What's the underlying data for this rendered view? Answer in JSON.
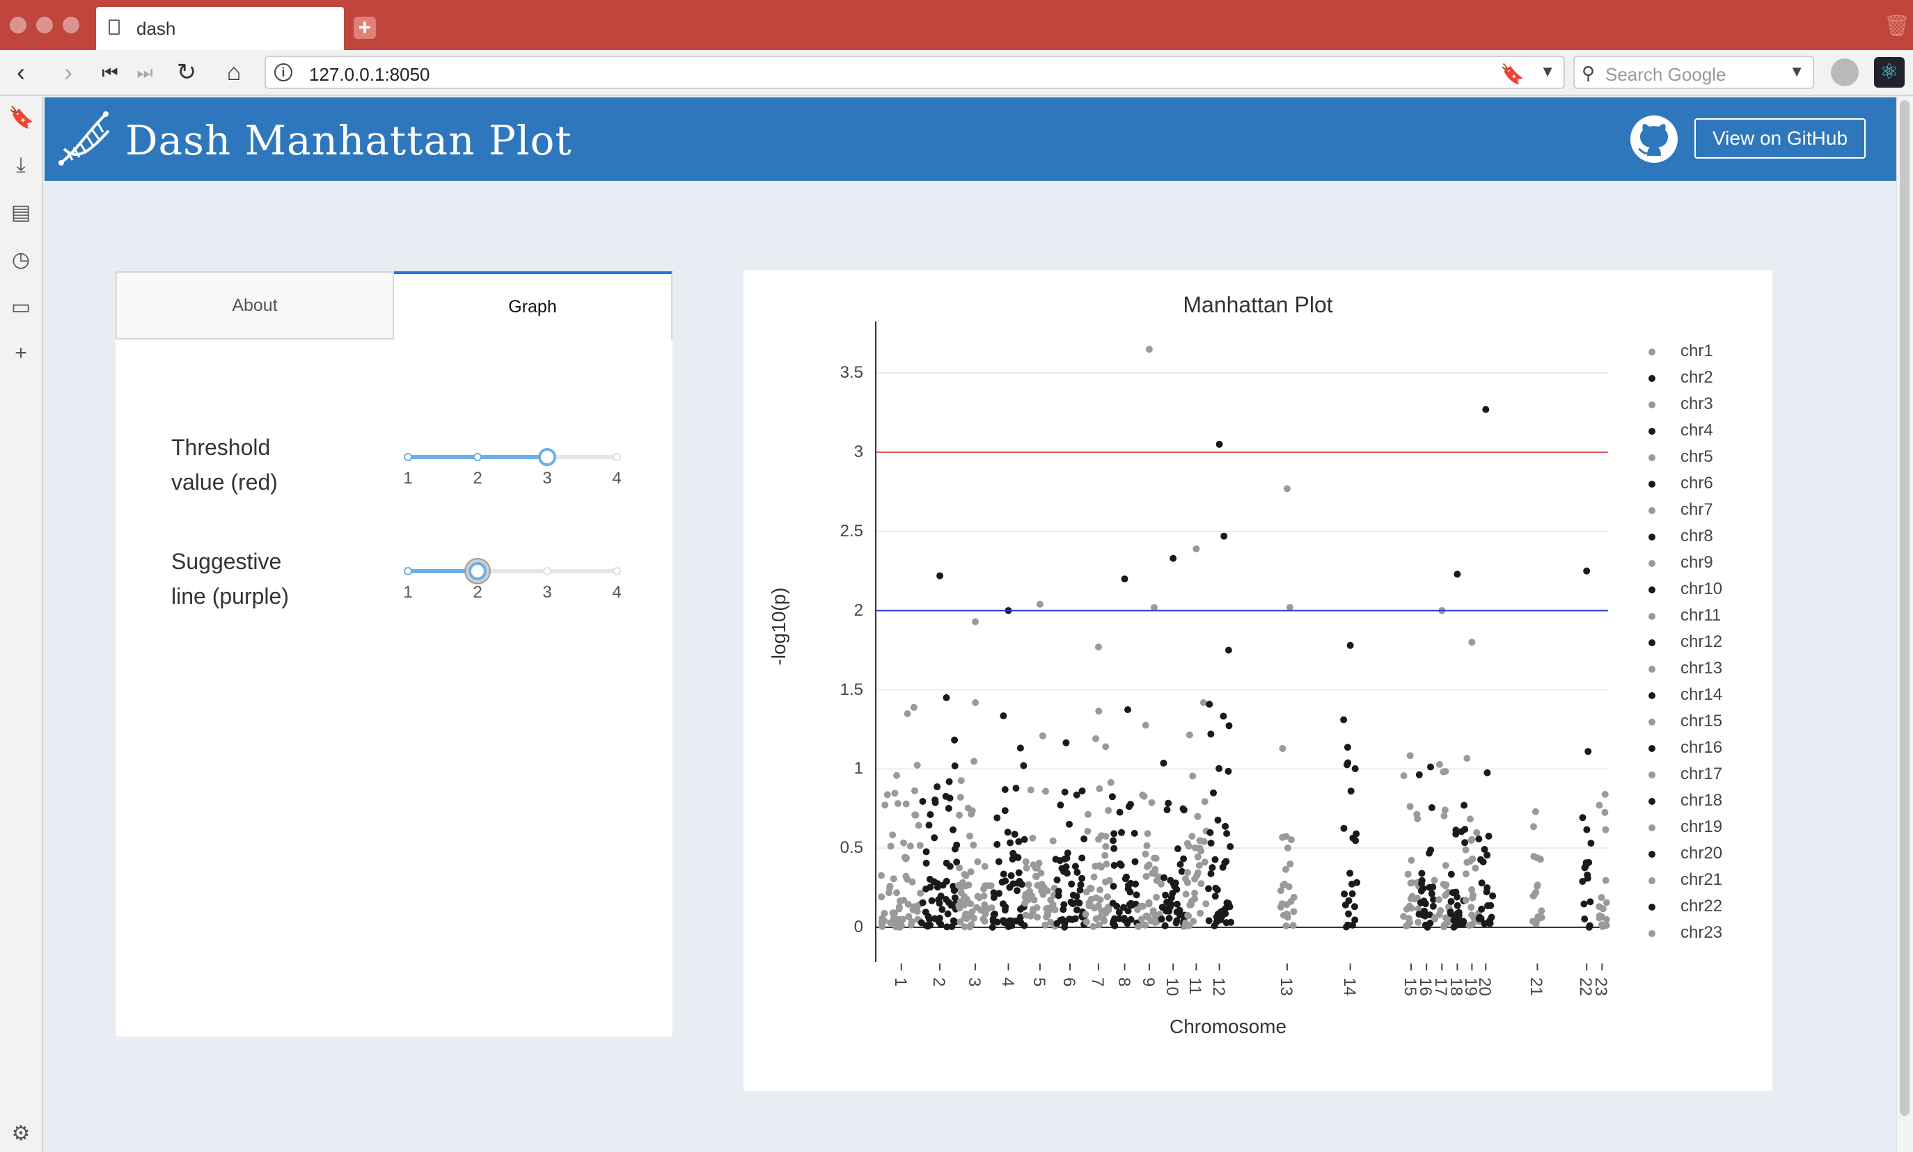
{
  "browser": {
    "tab_title": "dash",
    "url": "127.0.0.1:8050",
    "search_placeholder": "Search Google"
  },
  "app": {
    "title": "Dash Manhattan Plot",
    "github_button": "View on GitHub"
  },
  "tabs": {
    "about": "About",
    "graph": "Graph"
  },
  "controls": {
    "threshold": {
      "label_line1": "Threshold",
      "label_line2": "value (red)",
      "value": 3,
      "min": 1,
      "max": 4,
      "marks": [
        "1",
        "2",
        "3",
        "4"
      ]
    },
    "suggestive": {
      "label_line1": "Suggestive",
      "label_line2": "line (purple)",
      "value": 2,
      "min": 1,
      "max": 4,
      "marks": [
        "1",
        "2",
        "3",
        "4"
      ]
    }
  },
  "chart_data": {
    "type": "scatter",
    "title": "Manhattan Plot",
    "xlabel": "Chromosome",
    "ylabel": "-log10(p)",
    "ylim": [
      0,
      3.8
    ],
    "yticks": [
      "0",
      "0.5",
      "1",
      "1.5",
      "2",
      "2.5",
      "3",
      "3.5"
    ],
    "genomewide_line": 3,
    "suggestive_line": 2,
    "genomewide_color": "#e05252",
    "suggestive_color": "#2a3fd6",
    "series_colors": [
      "#9a9a9a",
      "#1a1a1a"
    ],
    "legend": [
      "chr1",
      "chr2",
      "chr3",
      "chr4",
      "chr5",
      "chr6",
      "chr7",
      "chr8",
      "chr9",
      "chr10",
      "chr11",
      "chr12",
      "chr13",
      "chr14",
      "chr15",
      "chr16",
      "chr17",
      "chr18",
      "chr19",
      "chr20",
      "chr21",
      "chr22",
      "chr23"
    ],
    "x_labels": [
      "1",
      "2",
      "3",
      "4",
      "5",
      "6",
      "7",
      "8",
      "9",
      "10",
      "11",
      "12",
      "13",
      "14",
      "15",
      "16",
      "17",
      "18",
      "19",
      "20",
      "21",
      "22",
      "23"
    ],
    "notable_points": [
      {
        "chr": "chr9",
        "y": 3.65
      },
      {
        "chr": "chr20",
        "y": 3.27
      },
      {
        "chr": "chr12",
        "y": 3.05
      },
      {
        "chr": "chr13",
        "y": 2.77
      },
      {
        "chr": "chr12",
        "y": 2.47
      },
      {
        "chr": "chr11",
        "y": 2.39
      },
      {
        "chr": "chr10",
        "y": 2.33
      },
      {
        "chr": "chr2",
        "y": 2.22
      },
      {
        "chr": "chr18",
        "y": 2.23
      },
      {
        "chr": "chr22",
        "y": 2.25
      },
      {
        "chr": "chr8",
        "y": 2.2
      },
      {
        "chr": "chr5",
        "y": 2.04
      },
      {
        "chr": "chr9",
        "y": 2.02
      },
      {
        "chr": "chr4",
        "y": 2.0
      },
      {
        "chr": "chr17",
        "y": 2.0
      },
      {
        "chr": "chr13",
        "y": 2.02
      },
      {
        "chr": "chr3",
        "y": 1.93
      },
      {
        "chr": "chr19",
        "y": 1.8
      },
      {
        "chr": "chr14",
        "y": 1.78
      },
      {
        "chr": "chr7",
        "y": 1.77
      },
      {
        "chr": "chr12",
        "y": 1.75
      }
    ]
  }
}
